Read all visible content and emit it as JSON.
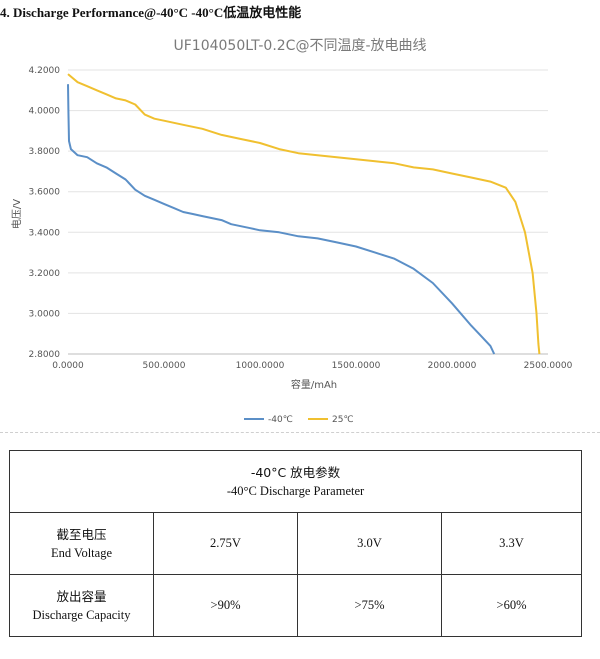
{
  "heading": "4. Discharge  Performance@-40°C  -40°C低温放电性能",
  "chart_data": {
    "type": "line",
    "title": "UF104050LT-0.2C@不同温度-放电曲线",
    "xlabel": "容量/mAh",
    "ylabel": "电压/V",
    "xlim": [
      0,
      2500
    ],
    "ylim": [
      2.8,
      4.2
    ],
    "x_ticks": [
      "0.0000",
      "500.0000",
      "1000.0000",
      "1500.0000",
      "2000.0000",
      "2500.0000"
    ],
    "y_ticks": [
      "2.8000",
      "3.0000",
      "3.2000",
      "3.4000",
      "3.6000",
      "3.8000",
      "4.0000",
      "4.2000"
    ],
    "grid": "horizontal",
    "legend_position": "bottom",
    "series": [
      {
        "name": "-40℃",
        "color": "#5b8fc7",
        "points": [
          [
            0,
            4.13
          ],
          [
            2,
            4.0
          ],
          [
            5,
            3.85
          ],
          [
            15,
            3.81
          ],
          [
            50,
            3.78
          ],
          [
            100,
            3.77
          ],
          [
            150,
            3.74
          ],
          [
            200,
            3.72
          ],
          [
            250,
            3.69
          ],
          [
            300,
            3.66
          ],
          [
            350,
            3.61
          ],
          [
            400,
            3.58
          ],
          [
            450,
            3.56
          ],
          [
            500,
            3.54
          ],
          [
            550,
            3.52
          ],
          [
            600,
            3.5
          ],
          [
            650,
            3.49
          ],
          [
            700,
            3.48
          ],
          [
            750,
            3.47
          ],
          [
            800,
            3.46
          ],
          [
            850,
            3.44
          ],
          [
            900,
            3.43
          ],
          [
            950,
            3.42
          ],
          [
            1000,
            3.41
          ],
          [
            1100,
            3.4
          ],
          [
            1200,
            3.38
          ],
          [
            1300,
            3.37
          ],
          [
            1400,
            3.35
          ],
          [
            1500,
            3.33
          ],
          [
            1600,
            3.3
          ],
          [
            1700,
            3.27
          ],
          [
            1800,
            3.22
          ],
          [
            1900,
            3.15
          ],
          [
            2000,
            3.05
          ],
          [
            2100,
            2.94
          ],
          [
            2150,
            2.89
          ],
          [
            2200,
            2.84
          ],
          [
            2220,
            2.8
          ]
        ]
      },
      {
        "name": "25℃",
        "color": "#f0c030",
        "points": [
          [
            0,
            4.18
          ],
          [
            50,
            4.14
          ],
          [
            100,
            4.12
          ],
          [
            150,
            4.1
          ],
          [
            200,
            4.08
          ],
          [
            250,
            4.06
          ],
          [
            300,
            4.05
          ],
          [
            350,
            4.03
          ],
          [
            400,
            3.98
          ],
          [
            450,
            3.96
          ],
          [
            500,
            3.95
          ],
          [
            600,
            3.93
          ],
          [
            700,
            3.91
          ],
          [
            800,
            3.88
          ],
          [
            900,
            3.86
          ],
          [
            1000,
            3.84
          ],
          [
            1100,
            3.81
          ],
          [
            1200,
            3.79
          ],
          [
            1300,
            3.78
          ],
          [
            1400,
            3.77
          ],
          [
            1500,
            3.76
          ],
          [
            1600,
            3.75
          ],
          [
            1700,
            3.74
          ],
          [
            1800,
            3.72
          ],
          [
            1900,
            3.71
          ],
          [
            2000,
            3.69
          ],
          [
            2100,
            3.67
          ],
          [
            2200,
            3.65
          ],
          [
            2280,
            3.62
          ],
          [
            2330,
            3.55
          ],
          [
            2380,
            3.4
          ],
          [
            2420,
            3.2
          ],
          [
            2440,
            3.0
          ],
          [
            2450,
            2.85
          ],
          [
            2455,
            2.8
          ]
        ]
      }
    ]
  },
  "table": {
    "header_cn": "-40°C 放电参数",
    "header_en": "-40°C Discharge Parameter",
    "rows": [
      {
        "label_cn": "截至电压",
        "label_en": "End Voltage",
        "values": [
          "2.75V",
          "3.0V",
          "3.3V"
        ]
      },
      {
        "label_cn": "放出容量",
        "label_en": "Discharge Capacity",
        "values": [
          ">90%",
          ">75%",
          ">60%"
        ]
      }
    ]
  }
}
